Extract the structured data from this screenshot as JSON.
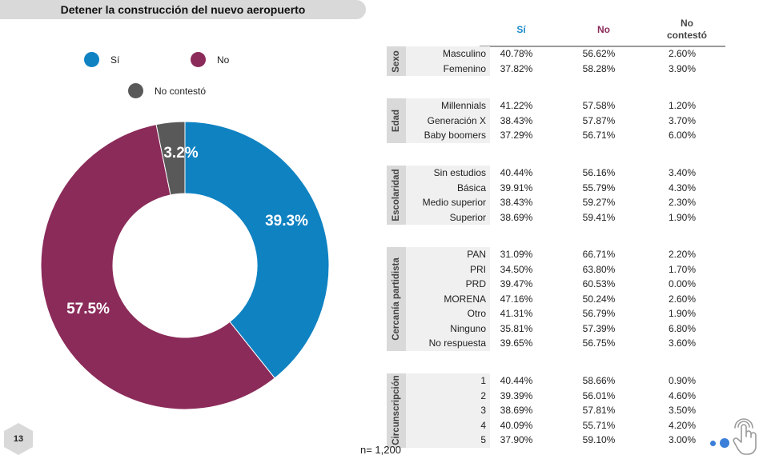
{
  "title": "Detener la construcción del nuevo aeropuerto",
  "legend": [
    {
      "label": "Sí",
      "color": "#0f82c2"
    },
    {
      "label": "No",
      "color": "#8b2b5a"
    },
    {
      "label": "No contestó",
      "color": "#595959"
    }
  ],
  "chart_data": [
    {
      "type": "pie",
      "subtype": "donut",
      "title": "Detener la construcción del nuevo aeropuerto",
      "categories": [
        "Sí",
        "No",
        "No contestó"
      ],
      "values": [
        39.3,
        57.5,
        3.2
      ],
      "labels": [
        "39.3%",
        "57.5%",
        "3.2%"
      ],
      "colors": [
        "#0f82c2",
        "#8b2b5a",
        "#595959"
      ],
      "legend": "top"
    },
    {
      "type": "table",
      "columns": [
        "Sí",
        "No",
        "No contestó"
      ],
      "column_colors": [
        "#1a8ac8",
        "#8b2b5a",
        "#444444"
      ],
      "groups": [
        {
          "name": "Sexo",
          "rows": [
            {
              "label": "Masculino",
              "values": [
                "40.78%",
                "56.62%",
                "2.60%"
              ]
            },
            {
              "label": "Femenino",
              "values": [
                "37.82%",
                "58.28%",
                "3.90%"
              ]
            }
          ]
        },
        {
          "name": "Edad",
          "rows": [
            {
              "label": "Millennials",
              "values": [
                "41.22%",
                "57.58%",
                "1.20%"
              ]
            },
            {
              "label": "Generación X",
              "values": [
                "38.43%",
                "57.87%",
                "3.70%"
              ]
            },
            {
              "label": "Baby boomers",
              "values": [
                "37.29%",
                "56.71%",
                "6.00%"
              ]
            }
          ]
        },
        {
          "name": "Escolaridad",
          "rows": [
            {
              "label": "Sin estudios",
              "values": [
                "40.44%",
                "56.16%",
                "3.40%"
              ]
            },
            {
              "label": "Básica",
              "values": [
                "39.91%",
                "55.79%",
                "4.30%"
              ]
            },
            {
              "label": "Medio superior",
              "values": [
                "38.43%",
                "59.27%",
                "2.30%"
              ]
            },
            {
              "label": "Superior",
              "values": [
                "38.69%",
                "59.41%",
                "1.90%"
              ]
            }
          ]
        },
        {
          "name": "Cercanía partidista",
          "rows": [
            {
              "label": "PAN",
              "values": [
                "31.09%",
                "66.71%",
                "2.20%"
              ]
            },
            {
              "label": "PRI",
              "values": [
                "34.50%",
                "63.80%",
                "1.70%"
              ]
            },
            {
              "label": "PRD",
              "values": [
                "39.47%",
                "60.53%",
                "0.00%"
              ]
            },
            {
              "label": "MORENA",
              "values": [
                "47.16%",
                "50.24%",
                "2.60%"
              ]
            },
            {
              "label": "Otro",
              "values": [
                "41.31%",
                "56.79%",
                "1.90%"
              ]
            },
            {
              "label": "Ninguno",
              "values": [
                "35.81%",
                "57.39%",
                "6.80%"
              ]
            },
            {
              "label": "No respuesta",
              "values": [
                "39.65%",
                "56.75%",
                "3.60%"
              ]
            }
          ]
        },
        {
          "name": "Circunscripción",
          "rows": [
            {
              "label": "1",
              "values": [
                "40.44%",
                "58.66%",
                "0.90%"
              ]
            },
            {
              "label": "2",
              "values": [
                "39.39%",
                "56.01%",
                "4.60%"
              ]
            },
            {
              "label": "3",
              "values": [
                "38.69%",
                "57.81%",
                "3.50%"
              ]
            },
            {
              "label": "4",
              "values": [
                "40.09%",
                "55.71%",
                "4.20%"
              ]
            },
            {
              "label": "5",
              "values": [
                "37.90%",
                "59.10%",
                "3.00%"
              ]
            }
          ]
        }
      ]
    }
  ],
  "table_headers": {
    "si": "Sí",
    "no": "No",
    "nc_line1": "No",
    "nc_line2": "contestó"
  },
  "footer": {
    "page_number": "13",
    "sample": "n= 1,200"
  },
  "icons": {
    "nav": "touch-hand-icon",
    "dots": "pagination-dots"
  }
}
